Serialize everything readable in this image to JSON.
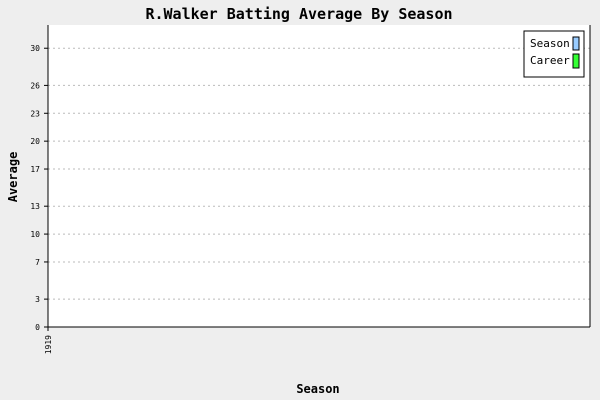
{
  "chart_data": {
    "type": "line",
    "title": "R.Walker Batting Average By Season",
    "xlabel": "Season",
    "ylabel": "Average",
    "categories": [
      "1919"
    ],
    "ylim": [
      0,
      32.5
    ],
    "yticks": [
      "0",
      "3",
      "7",
      "10",
      "13",
      "17",
      "20",
      "23",
      "26",
      "30"
    ],
    "series": [
      {
        "name": "Season",
        "values": [
          null
        ],
        "color": "#99ccff"
      },
      {
        "name": "Career",
        "values": [
          null
        ],
        "color": "#33ff33"
      }
    ],
    "grid": true,
    "legend": "top-right"
  },
  "colors": {
    "background": "#eeeeee",
    "plot_background": "#ffffff",
    "grid": "#bbbbbb",
    "axis": "#000000"
  }
}
